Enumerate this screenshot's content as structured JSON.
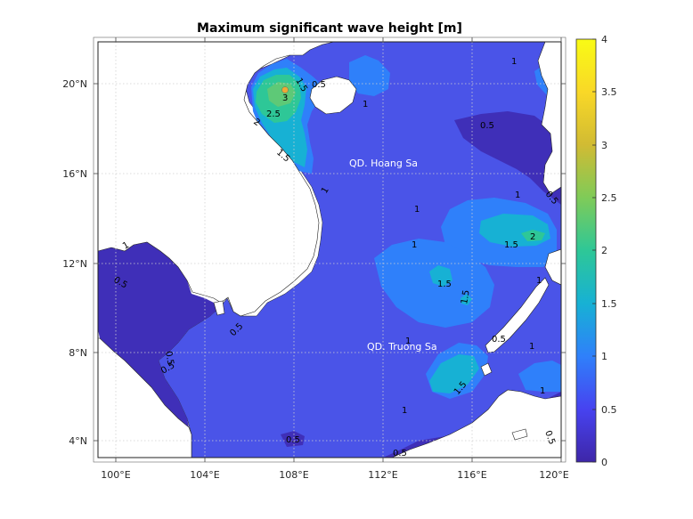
{
  "title": "Maximum significant wave height [m]",
  "lon_ticks": [
    "100°E",
    "104°E",
    "108°E",
    "112°E",
    "116°E",
    "120°E"
  ],
  "lat_ticks": [
    "20°N",
    "16°N",
    "12°N",
    "8°N",
    "4°N"
  ],
  "colorbar": {
    "min": 0,
    "max": 4,
    "ticks": [
      "4",
      "3.5",
      "3",
      "2.5",
      "2",
      "1.5",
      "1",
      "0.5",
      "0"
    ],
    "colors": [
      "#3e26a8",
      "#4743f0",
      "#2f80fa",
      "#17b1d4",
      "#2ec797",
      "#7fcb58",
      "#d1bb33",
      "#f9d827",
      "#f9fb15"
    ]
  },
  "places": {
    "hoang_sa": "QD. Hoang Sa",
    "truong_sa": "QD. Truong Sa"
  },
  "contour_labels": [
    {
      "id": "c1",
      "text": "1"
    },
    {
      "id": "c2",
      "text": "1.5"
    },
    {
      "id": "c3",
      "text": "0.5"
    },
    {
      "id": "c4",
      "text": "3"
    },
    {
      "id": "c5",
      "text": "2.5"
    },
    {
      "id": "c6",
      "text": "2"
    },
    {
      "id": "c7",
      "text": "1.5"
    },
    {
      "id": "c8",
      "text": "1"
    },
    {
      "id": "c9",
      "text": "1"
    },
    {
      "id": "c10",
      "text": "0.5"
    },
    {
      "id": "c11",
      "text": "1"
    },
    {
      "id": "c12",
      "text": "1"
    },
    {
      "id": "c13",
      "text": "1"
    },
    {
      "id": "c14",
      "text": "1.5"
    },
    {
      "id": "c15",
      "text": "2"
    },
    {
      "id": "c16",
      "text": "1"
    },
    {
      "id": "c17",
      "text": "0.5"
    },
    {
      "id": "c18",
      "text": "1.5"
    },
    {
      "id": "c19",
      "text": "1.5"
    },
    {
      "id": "c20",
      "text": "1"
    },
    {
      "id": "c21",
      "text": "1.5"
    },
    {
      "id": "c22",
      "text": "1"
    },
    {
      "id": "c23",
      "text": "0.5"
    },
    {
      "id": "c24",
      "text": "0.5"
    },
    {
      "id": "c25",
      "text": "0.5"
    },
    {
      "id": "c26",
      "text": "0.5"
    },
    {
      "id": "c27",
      "text": "1"
    },
    {
      "id": "c28",
      "text": "1"
    },
    {
      "id": "c29",
      "text": "0.5"
    },
    {
      "id": "c30",
      "text": "0.5"
    },
    {
      "id": "c31",
      "text": "1"
    },
    {
      "id": "c32",
      "text": "0.5"
    },
    {
      "id": "c33",
      "text": "0.5"
    }
  ]
}
